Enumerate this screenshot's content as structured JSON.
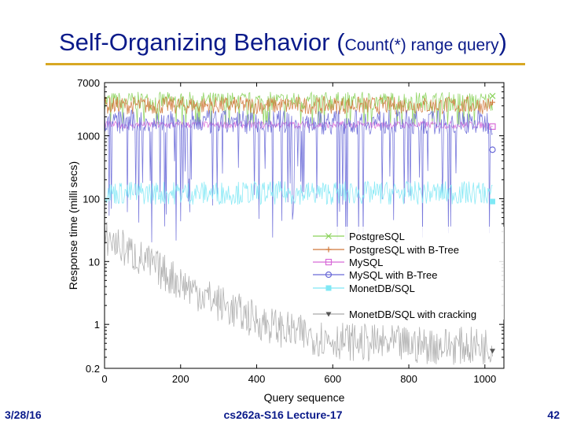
{
  "slide": {
    "title_main": "Self-Organizing Behavior (",
    "title_sub": "Count(*) range query",
    "title_close": ")",
    "footer_date": "3/28/16",
    "footer_course": "cs262a-S16 Lecture-17",
    "footer_page": "42",
    "accent_color": "#d8a823",
    "title_color": "#0a1a8a"
  },
  "chart_data": {
    "type": "line",
    "xlabel": "Query sequence",
    "ylabel": "Response time (milli secs)",
    "xlim": [
      0,
      1050
    ],
    "ylim": [
      0.2,
      7000
    ],
    "yscale": "log",
    "x_ticks": [
      0,
      200,
      400,
      600,
      800,
      1000
    ],
    "x_tick_labels": [
      "0",
      "200",
      "400",
      "600",
      "800",
      "1000"
    ],
    "y_ticks": [
      0.2,
      1,
      10,
      100,
      1000,
      7000
    ],
    "y_tick_labels": [
      "0.2",
      "1",
      "10",
      "100",
      "1000",
      "7000"
    ],
    "legend_position": "lower-right",
    "series": [
      {
        "name": "PostgreSQL",
        "color": "#8ad25a",
        "marker": "x",
        "base": 3500,
        "noise_low": 2500,
        "noise_high": 5000,
        "last_marker_value": 4300
      },
      {
        "name": "PostgreSQL with B-Tree",
        "color": "#d0783a",
        "marker": "+",
        "base": 3100,
        "noise_low": 2200,
        "noise_high": 4200,
        "last_marker_value": 3400
      },
      {
        "name": "MySQL",
        "color": "#d86ad8",
        "marker": "square",
        "base": 1500,
        "noise_low": 1300,
        "noise_high": 1700,
        "last_marker_value": 1400
      },
      {
        "name": "MySQL with B-Tree",
        "color": "#6a6ad8",
        "marker": "circle",
        "base": 1500,
        "noise_low": 20,
        "noise_high": 3000,
        "last_marker_value": 600
      },
      {
        "name": "MonetDB/SQL",
        "color": "#7fe8f5",
        "marker": "filled-square",
        "base": 130,
        "noise_low": 80,
        "noise_high": 190,
        "last_marker_value": 90
      },
      {
        "name": "MonetDB/SQL with cracking",
        "color": "#a9a9a9",
        "marker": "triangle-down",
        "start_value": 25,
        "end_value": 0.45,
        "last_marker_value": 0.38
      }
    ]
  }
}
